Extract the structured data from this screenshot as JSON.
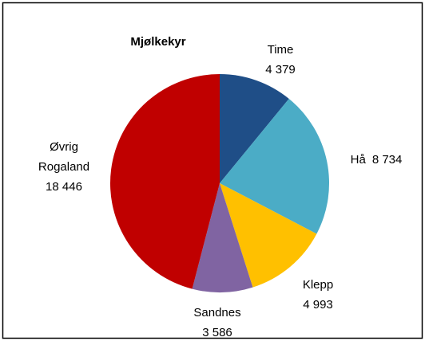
{
  "chart_data": {
    "type": "pie",
    "title": "Mjølkekyr",
    "categories": [
      "Time",
      "Hå",
      "Klepp",
      "Sandnes",
      "Øvrig Rogaland"
    ],
    "values": [
      4379,
      8734,
      4993,
      3586,
      18446
    ],
    "value_labels": [
      "4 379",
      "8 734",
      "4 993",
      "3 586",
      "18 446"
    ],
    "colors": [
      "#1f4e87",
      "#4bacc6",
      "#ffc000",
      "#8064a2",
      "#c00000"
    ]
  }
}
